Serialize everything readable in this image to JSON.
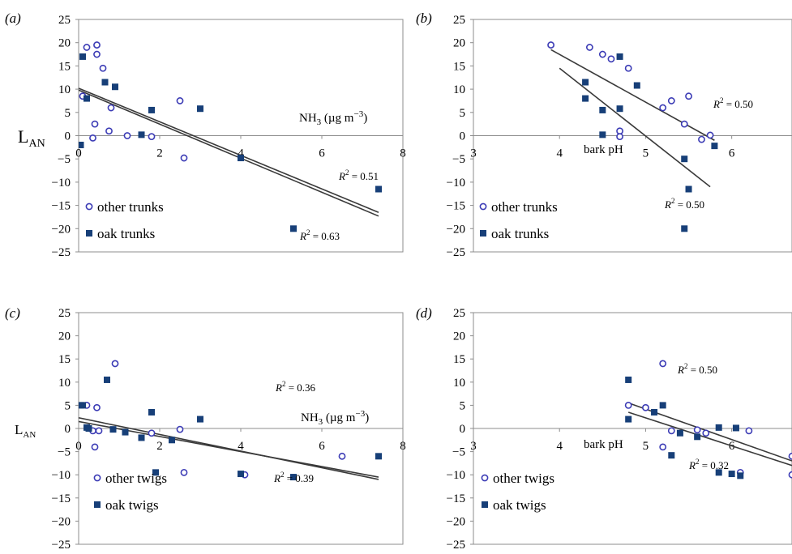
{
  "y_label": "L",
  "y_label_sub": "AN",
  "chart_data": [
    {
      "type": "scatter",
      "panel_label": "(a)",
      "xlabel_main": "NH",
      "xlabel_sub": "3",
      "xlabel_rest": " (µg m",
      "xlabel_sup": "−3",
      "xlabel_end": ")",
      "xlim": [
        0,
        8
      ],
      "ylim": [
        -25,
        25
      ],
      "x_ticks": [
        "0",
        "2",
        "4",
        "6",
        "8"
      ],
      "y_ticks": [
        "25",
        "20",
        "15",
        "10",
        "5",
        "0",
        "−5",
        "−10",
        "−15",
        "−20",
        "−25"
      ],
      "legend": [
        "other trunks",
        "oak trunks"
      ],
      "series": [
        {
          "name": "other trunks",
          "marker": "circle",
          "points": [
            [
              0.2,
              19
            ],
            [
              0.45,
              19.5
            ],
            [
              0.45,
              17.5
            ],
            [
              0.6,
              14.5
            ],
            [
              0.1,
              8.5
            ],
            [
              0.8,
              6
            ],
            [
              0.4,
              2.5
            ],
            [
              0.35,
              -0.5
            ],
            [
              0.75,
              1
            ],
            [
              1.2,
              0
            ],
            [
              1.8,
              -0.2
            ],
            [
              2.5,
              7.5
            ],
            [
              2.6,
              -4.8
            ]
          ]
        },
        {
          "name": "oak trunks",
          "marker": "square",
          "points": [
            [
              0.1,
              17
            ],
            [
              0.65,
              11.5
            ],
            [
              0.9,
              10.5
            ],
            [
              0.2,
              8
            ],
            [
              1.8,
              5.5
            ],
            [
              3.0,
              5.8
            ],
            [
              1.55,
              0.2
            ],
            [
              0.05,
              -2
            ],
            [
              4.0,
              -4.8
            ],
            [
              5.3,
              -20
            ],
            [
              7.4,
              -11.5
            ]
          ]
        }
      ],
      "fits": [
        [
          0,
          10.2,
          7.4,
          -16.5
        ],
        [
          0,
          9.8,
          7.4,
          -17.3
        ]
      ],
      "annotations": [
        {
          "pre": "R",
          "sup": "2",
          "post": " = 0.51"
        },
        {
          "pre": "R",
          "sup": "2",
          "post": " = 0.63"
        }
      ]
    },
    {
      "type": "scatter",
      "panel_label": "(b)",
      "xlabel_main": "bark pH",
      "xlim": [
        3,
        6.7
      ],
      "ylim": [
        -25,
        25
      ],
      "x_ticks": [
        "3",
        "4",
        "5",
        "6"
      ],
      "y_ticks": [
        "25",
        "20",
        "15",
        "10",
        "5",
        "0",
        "−5",
        "−10",
        "−15",
        "−20",
        "−25"
      ],
      "legend": [
        "other trunks",
        "oak trunks"
      ],
      "series": [
        {
          "name": "other trunks",
          "marker": "circle",
          "points": [
            [
              3.9,
              19.5
            ],
            [
              4.35,
              19
            ],
            [
              4.5,
              17.5
            ],
            [
              4.6,
              16.5
            ],
            [
              4.8,
              14.5
            ],
            [
              5.2,
              6
            ],
            [
              5.3,
              7.5
            ],
            [
              5.45,
              2.5
            ],
            [
              5.5,
              8.5
            ],
            [
              5.65,
              -0.8
            ],
            [
              5.75,
              0.1
            ],
            [
              4.7,
              1
            ],
            [
              4.7,
              -0.2
            ]
          ]
        },
        {
          "name": "oak trunks",
          "marker": "square",
          "points": [
            [
              4.7,
              17
            ],
            [
              4.9,
              10.8
            ],
            [
              4.3,
              11.5
            ],
            [
              4.3,
              8
            ],
            [
              4.7,
              5.8
            ],
            [
              4.5,
              5.5
            ],
            [
              4.5,
              0.2
            ],
            [
              5.45,
              -5
            ],
            [
              5.5,
              -11.5
            ],
            [
              5.45,
              -20
            ],
            [
              5.8,
              -2.2
            ]
          ]
        }
      ],
      "fits": [
        [
          3.9,
          18.5,
          5.8,
          -1
        ],
        [
          4.0,
          14.5,
          5.75,
          -11
        ]
      ],
      "annotations": [
        {
          "pre": "R",
          "sup": "2",
          "post": " = 0.50"
        },
        {
          "pre": "R",
          "sup": "2",
          "post": " = 0.50"
        }
      ]
    },
    {
      "type": "scatter",
      "panel_label": "(c)",
      "xlabel_main": "NH",
      "xlabel_sub": "3",
      "xlabel_rest": " (µg m",
      "xlabel_sup": "−3",
      "xlabel_end": ")",
      "xlim": [
        0,
        8
      ],
      "ylim": [
        -25,
        25
      ],
      "x_ticks": [
        "0",
        "2",
        "4",
        "6",
        "8"
      ],
      "y_ticks": [
        "25",
        "20",
        "15",
        "10",
        "5",
        "0",
        "−5",
        "−10",
        "−15",
        "−20",
        "−25"
      ],
      "legend": [
        "other twigs",
        "oak twigs"
      ],
      "series": [
        {
          "name": "other twigs",
          "marker": "circle",
          "points": [
            [
              0.9,
              14
            ],
            [
              0.2,
              5
            ],
            [
              0.45,
              4.5
            ],
            [
              0.35,
              -0.5
            ],
            [
              0.5,
              -0.5
            ],
            [
              0.4,
              -4
            ],
            [
              1.8,
              -1
            ],
            [
              2.5,
              -0.2
            ],
            [
              2.6,
              -9.5
            ],
            [
              4.1,
              -10
            ],
            [
              6.5,
              -6
            ]
          ]
        },
        {
          "name": "oak twigs",
          "marker": "square",
          "points": [
            [
              0.05,
              5
            ],
            [
              0.1,
              5
            ],
            [
              0.2,
              0.2
            ],
            [
              0.25,
              0
            ],
            [
              0.7,
              10.5
            ],
            [
              0.85,
              -0.2
            ],
            [
              1.15,
              -0.8
            ],
            [
              1.55,
              -2
            ],
            [
              1.8,
              3.5
            ],
            [
              1.9,
              -9.5
            ],
            [
              2.3,
              -2.5
            ],
            [
              3.0,
              2
            ],
            [
              4.0,
              -9.8
            ],
            [
              5.3,
              -10.5
            ],
            [
              7.4,
              -6
            ]
          ]
        }
      ],
      "fits": [
        [
          0,
          2.3,
          7.4,
          -11
        ],
        [
          0,
          1.5,
          7.4,
          -10.5
        ]
      ],
      "annotations": [
        {
          "pre": "R",
          "sup": "2",
          "post": " = 0.36"
        },
        {
          "pre": "R",
          "sup": "2",
          "post": " = 0.39"
        }
      ]
    },
    {
      "type": "scatter",
      "panel_label": "(d)",
      "xlabel_main": "bark pH",
      "xlim": [
        3,
        6.7
      ],
      "ylim": [
        -25,
        25
      ],
      "x_ticks": [
        "3",
        "4",
        "5",
        "6"
      ],
      "y_ticks": [
        "25",
        "20",
        "15",
        "10",
        "5",
        "0",
        "−5",
        "−10",
        "−15",
        "−20",
        "−25"
      ],
      "legend": [
        "other twigs",
        "oak twigs"
      ],
      "series": [
        {
          "name": "other twigs",
          "marker": "circle",
          "points": [
            [
              5.2,
              14
            ],
            [
              4.8,
              5
            ],
            [
              5.0,
              4.5
            ],
            [
              5.3,
              -0.5
            ],
            [
              5.6,
              -0.3
            ],
            [
              5.2,
              -4
            ],
            [
              5.7,
              -1
            ],
            [
              6.2,
              -0.5
            ],
            [
              6.1,
              -9.5
            ],
            [
              6.7,
              -6
            ],
            [
              6.7,
              -10
            ]
          ]
        },
        {
          "name": "oak twigs",
          "marker": "square",
          "points": [
            [
              4.8,
              10.5
            ],
            [
              4.8,
              2
            ],
            [
              5.1,
              3.5
            ],
            [
              5.2,
              5
            ],
            [
              5.4,
              -1
            ],
            [
              5.3,
              -5.8
            ],
            [
              5.6,
              -1.8
            ],
            [
              5.85,
              0.2
            ],
            [
              6.05,
              0.1
            ],
            [
              5.85,
              -9.5
            ],
            [
              6.0,
              -9.8
            ],
            [
              6.1,
              -10.2
            ]
          ]
        }
      ],
      "fits": [
        [
          4.8,
          5.5,
          6.7,
          -7
        ],
        [
          4.8,
          3.5,
          6.7,
          -8
        ]
      ],
      "annotations": [
        {
          "pre": "R",
          "sup": "2",
          "post": " = 0.50"
        },
        {
          "pre": "R",
          "sup": "2",
          "post": " = 0.32"
        }
      ]
    }
  ]
}
